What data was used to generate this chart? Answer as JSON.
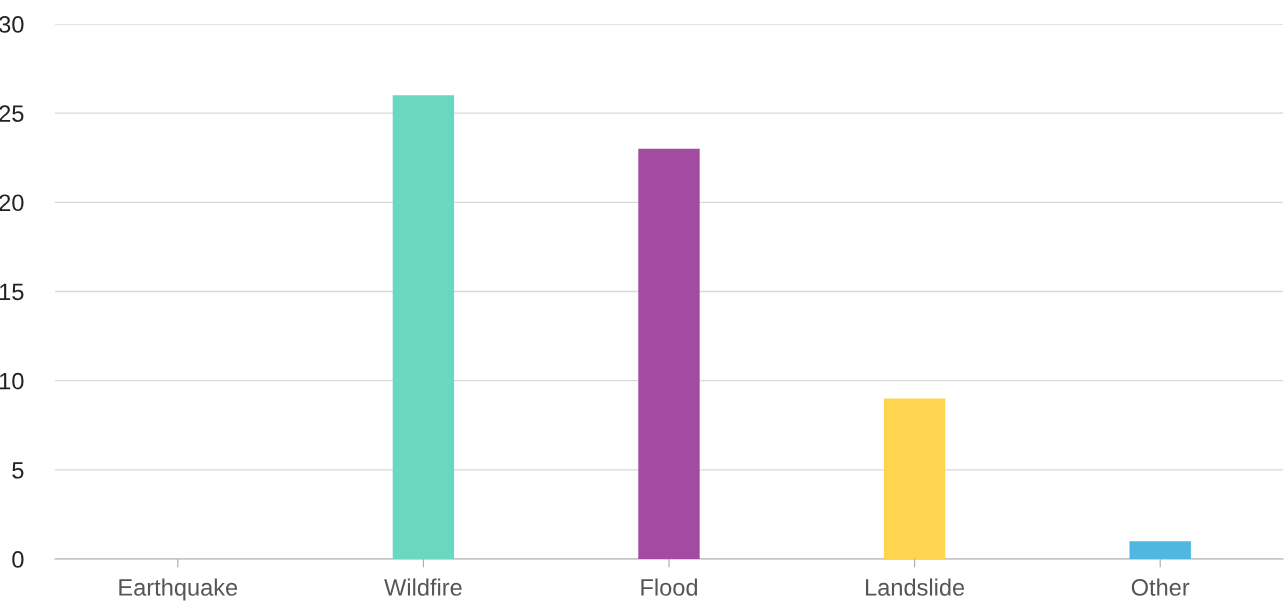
{
  "chart_data": {
    "type": "bar",
    "categories": [
      "Earthquake",
      "Wildfire",
      "Flood",
      "Landslide",
      "Other"
    ],
    "values": [
      0,
      26,
      23,
      9,
      1
    ],
    "colors": [
      null,
      "#6ad8be",
      "#a24ba0",
      "#ffd54f",
      "#4fb8e0"
    ],
    "ylim": [
      0,
      30
    ],
    "yticks": [
      0,
      5,
      10,
      15,
      20,
      25,
      30
    ],
    "grid": "y"
  }
}
